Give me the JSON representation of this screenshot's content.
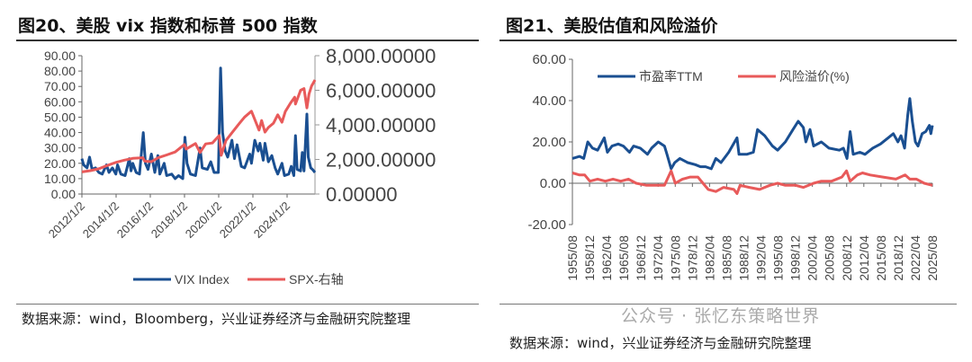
{
  "left": {
    "title": "图20、美股 vix 指数和标普 500 指数",
    "source": "数据来源：wind，Bloomberg，兴业证券经济与金融研究院整理"
  },
  "right": {
    "title": "图21、美股估值和风险溢价",
    "source": "数据来源：wind，兴业证券经济与金融研究院整理"
  },
  "watermark": "公众号 · 张忆东策略世界",
  "chart_data": [
    {
      "type": "line",
      "title": "图20、美股 vix 指数和标普 500 指数",
      "yticks": [
        "0.00",
        "10.00",
        "20.00",
        "30.00",
        "40.00",
        "50.00",
        "60.00",
        "70.00",
        "80.00",
        "90.00"
      ],
      "ylim": [
        0,
        90
      ],
      "y2ticks": [
        "0.00000",
        "2,000.00000",
        "4,000.00000",
        "6,000.00000",
        "8,000.00000"
      ],
      "y2lim": [
        0,
        8000
      ],
      "xticks": [
        "2012/1/2",
        "2014/1/2",
        "2016/1/2",
        "2018/1/2",
        "2020/1/2",
        "2022/1/2",
        "2024/1/2"
      ],
      "xlim": [
        2012,
        2025.75
      ],
      "series": [
        {
          "name": "VIX Index",
          "axis": "left",
          "color": "#1a4f91",
          "points": [
            [
              2012.0,
              23
            ],
            [
              2012.1,
              19
            ],
            [
              2012.3,
              17
            ],
            [
              2012.45,
              24
            ],
            [
              2012.6,
              16
            ],
            [
              2012.8,
              17
            ],
            [
              2013.0,
              14
            ],
            [
              2013.2,
              13
            ],
            [
              2013.45,
              19
            ],
            [
              2013.6,
              14
            ],
            [
              2013.8,
              17
            ],
            [
              2014.0,
              13
            ],
            [
              2014.1,
              19
            ],
            [
              2014.3,
              13
            ],
            [
              2014.55,
              12
            ],
            [
              2014.8,
              23
            ],
            [
              2014.9,
              15
            ],
            [
              2015.0,
              20
            ],
            [
              2015.2,
              14
            ],
            [
              2015.4,
              13
            ],
            [
              2015.62,
              40
            ],
            [
              2015.75,
              20
            ],
            [
              2015.9,
              16
            ],
            [
              2016.1,
              26
            ],
            [
              2016.3,
              14
            ],
            [
              2016.48,
              25
            ],
            [
              2016.6,
              13
            ],
            [
              2016.85,
              20
            ],
            [
              2017.0,
              12
            ],
            [
              2017.3,
              13
            ],
            [
              2017.5,
              10
            ],
            [
              2017.7,
              12
            ],
            [
              2017.95,
              10
            ],
            [
              2018.08,
              37
            ],
            [
              2018.2,
              20
            ],
            [
              2018.4,
              13
            ],
            [
              2018.7,
              12
            ],
            [
              2018.97,
              30
            ],
            [
              2019.1,
              17
            ],
            [
              2019.4,
              16
            ],
            [
              2019.6,
              21
            ],
            [
              2019.8,
              14
            ],
            [
              2020.05,
              14
            ],
            [
              2020.18,
              82
            ],
            [
              2020.3,
              40
            ],
            [
              2020.45,
              28
            ],
            [
              2020.6,
              24
            ],
            [
              2020.85,
              35
            ],
            [
              2021.0,
              23
            ],
            [
              2021.15,
              32
            ],
            [
              2021.4,
              18
            ],
            [
              2021.6,
              17
            ],
            [
              2021.9,
              26
            ],
            [
              2022.0,
              20
            ],
            [
              2022.2,
              35
            ],
            [
              2022.4,
              28
            ],
            [
              2022.5,
              33
            ],
            [
              2022.7,
              22
            ],
            [
              2022.8,
              33
            ],
            [
              2023.0,
              21
            ],
            [
              2023.2,
              25
            ],
            [
              2023.4,
              17
            ],
            [
              2023.55,
              13
            ],
            [
              2023.8,
              20
            ],
            [
              2023.95,
              12
            ],
            [
              2024.2,
              13
            ],
            [
              2024.35,
              18
            ],
            [
              2024.5,
              12
            ],
            [
              2024.6,
              38
            ],
            [
              2024.7,
              16
            ],
            [
              2024.9,
              15
            ],
            [
              2025.0,
              27
            ],
            [
              2025.1,
              15
            ],
            [
              2025.27,
              52
            ],
            [
              2025.35,
              24
            ],
            [
              2025.5,
              17
            ],
            [
              2025.6,
              16
            ],
            [
              2025.75,
              14
            ]
          ]
        },
        {
          "name": "SPX-右轴",
          "axis": "right",
          "color": "#e85a5a",
          "points": [
            [
              2012.0,
              1280
            ],
            [
              2012.5,
              1350
            ],
            [
              2013.0,
              1460
            ],
            [
              2013.5,
              1650
            ],
            [
              2014.0,
              1830
            ],
            [
              2014.5,
              1960
            ],
            [
              2015.0,
              2060
            ],
            [
              2015.6,
              2100
            ],
            [
              2015.7,
              1900
            ],
            [
              2016.1,
              1870
            ],
            [
              2016.5,
              2100
            ],
            [
              2017.0,
              2260
            ],
            [
              2017.5,
              2430
            ],
            [
              2018.05,
              2870
            ],
            [
              2018.15,
              2600
            ],
            [
              2018.7,
              2920
            ],
            [
              2018.97,
              2400
            ],
            [
              2019.3,
              2900
            ],
            [
              2019.7,
              2950
            ],
            [
              2020.1,
              3380
            ],
            [
              2020.22,
              2240
            ],
            [
              2020.5,
              3100
            ],
            [
              2020.9,
              3600
            ],
            [
              2021.3,
              4100
            ],
            [
              2021.6,
              4450
            ],
            [
              2022.0,
              4790
            ],
            [
              2022.45,
              3700
            ],
            [
              2022.6,
              4250
            ],
            [
              2022.8,
              3580
            ],
            [
              2023.0,
              3850
            ],
            [
              2023.3,
              4100
            ],
            [
              2023.55,
              4580
            ],
            [
              2023.8,
              4150
            ],
            [
              2024.0,
              4770
            ],
            [
              2024.3,
              5250
            ],
            [
              2024.55,
              5600
            ],
            [
              2024.6,
              5200
            ],
            [
              2024.9,
              6000
            ],
            [
              2025.1,
              6100
            ],
            [
              2025.27,
              4980
            ],
            [
              2025.4,
              5800
            ],
            [
              2025.55,
              6250
            ],
            [
              2025.75,
              6600
            ]
          ]
        }
      ],
      "legend": "bottom"
    },
    {
      "type": "line",
      "title": "图21、美股估值和风险溢价",
      "yticks": [
        "-20.00",
        "0.00",
        "20.00",
        "40.00",
        "60.00"
      ],
      "ylim": [
        -20,
        60
      ],
      "xticks": [
        "1955/08",
        "1958/12",
        "1962/04",
        "1965/08",
        "1968/12",
        "1972/04",
        "1975/08",
        "1978/12",
        "1982/04",
        "1985/08",
        "1988/12",
        "1992/04",
        "1995/08",
        "1998/12",
        "2002/04",
        "2005/08",
        "2008/12",
        "2012/04",
        "2015/08",
        "2018/12",
        "2022/04",
        "2025/08"
      ],
      "xlim": [
        1955.6,
        2025.6
      ],
      "series": [
        {
          "name": "市盈率TTM",
          "color": "#1a4f91",
          "points": [
            [
              1955.6,
              12
            ],
            [
              1957.0,
              13
            ],
            [
              1957.8,
              12
            ],
            [
              1958.6,
              20
            ],
            [
              1959.5,
              17
            ],
            [
              1960.5,
              16
            ],
            [
              1961.8,
              22
            ],
            [
              1962.4,
              15
            ],
            [
              1963.3,
              18
            ],
            [
              1964.5,
              19
            ],
            [
              1965.5,
              18
            ],
            [
              1966.7,
              15
            ],
            [
              1967.5,
              18
            ],
            [
              1968.8,
              17
            ],
            [
              1970.2,
              14
            ],
            [
              1971.0,
              17
            ],
            [
              1972.3,
              20
            ],
            [
              1973.5,
              18
            ],
            [
              1974.0,
              14
            ],
            [
              1974.8,
              7
            ],
            [
              1975.5,
              10
            ],
            [
              1976.5,
              12
            ],
            [
              1978.0,
              10
            ],
            [
              1979.5,
              9
            ],
            [
              1980.5,
              8
            ],
            [
              1981.5,
              8
            ],
            [
              1982.6,
              7
            ],
            [
              1983.5,
              12
            ],
            [
              1984.5,
              10
            ],
            [
              1986.0,
              15
            ],
            [
              1987.6,
              22
            ],
            [
              1988.0,
              14
            ],
            [
              1989.5,
              14
            ],
            [
              1990.8,
              15
            ],
            [
              1991.6,
              26
            ],
            [
              1993.0,
              23
            ],
            [
              1994.5,
              18
            ],
            [
              1995.5,
              16
            ],
            [
              1997.0,
              20
            ],
            [
              1998.5,
              26
            ],
            [
              1999.5,
              30
            ],
            [
              2000.5,
              27
            ],
            [
              2001.0,
              20
            ],
            [
              2001.8,
              26
            ],
            [
              2002.5,
              18
            ],
            [
              2004.0,
              20
            ],
            [
              2005.5,
              17
            ],
            [
              2007.5,
              16
            ],
            [
              2008.3,
              17
            ],
            [
              2009.0,
              12
            ],
            [
              2009.6,
              25
            ],
            [
              2010.2,
              14
            ],
            [
              2011.5,
              15
            ],
            [
              2012.5,
              14
            ],
            [
              2014.0,
              17
            ],
            [
              2015.5,
              19
            ],
            [
              2017.0,
              22
            ],
            [
              2018.0,
              24
            ],
            [
              2018.9,
              20
            ],
            [
              2019.5,
              23
            ],
            [
              2020.2,
              17
            ],
            [
              2020.8,
              33
            ],
            [
              2021.2,
              41
            ],
            [
              2021.7,
              30
            ],
            [
              2022.3,
              20
            ],
            [
              2022.8,
              18
            ],
            [
              2023.6,
              24
            ],
            [
              2024.3,
              25
            ],
            [
              2025.0,
              28
            ],
            [
              2025.3,
              24
            ],
            [
              2025.6,
              28
            ]
          ]
        },
        {
          "name": "风险溢价(%)",
          "color": "#e85a5a",
          "points": [
            [
              1955.6,
              5
            ],
            [
              1957.0,
              4
            ],
            [
              1958.0,
              4
            ],
            [
              1959.0,
              1
            ],
            [
              1960.5,
              2
            ],
            [
              1962.0,
              1
            ],
            [
              1963.5,
              2
            ],
            [
              1965.0,
              1
            ],
            [
              1966.5,
              2
            ],
            [
              1968.0,
              0
            ],
            [
              1970.0,
              -1
            ],
            [
              1972.0,
              -1
            ],
            [
              1973.5,
              -1
            ],
            [
              1974.8,
              6
            ],
            [
              1975.6,
              0
            ],
            [
              1977.0,
              2
            ],
            [
              1978.5,
              3
            ],
            [
              1980.0,
              3
            ],
            [
              1981.0,
              0
            ],
            [
              1982.0,
              -3
            ],
            [
              1983.5,
              -4
            ],
            [
              1985.0,
              -2
            ],
            [
              1987.0,
              -3
            ],
            [
              1987.6,
              -5
            ],
            [
              1988.2,
              -1
            ],
            [
              1990.0,
              -2
            ],
            [
              1992.0,
              -3
            ],
            [
              1994.0,
              -1
            ],
            [
              1995.5,
              0
            ],
            [
              1997.0,
              -1
            ],
            [
              1999.0,
              -1
            ],
            [
              2000.5,
              -2
            ],
            [
              2002.5,
              0
            ],
            [
              2004.0,
              1
            ],
            [
              2006.0,
              1
            ],
            [
              2008.0,
              3
            ],
            [
              2008.9,
              6
            ],
            [
              2009.6,
              1
            ],
            [
              2011.0,
              4
            ],
            [
              2012.0,
              5
            ],
            [
              2013.5,
              4
            ],
            [
              2016.0,
              3
            ],
            [
              2018.5,
              2
            ],
            [
              2020.3,
              4
            ],
            [
              2021.2,
              2
            ],
            [
              2022.5,
              2
            ],
            [
              2024.0,
              0
            ],
            [
              2025.6,
              -1
            ]
          ]
        }
      ],
      "legend": "top"
    }
  ]
}
